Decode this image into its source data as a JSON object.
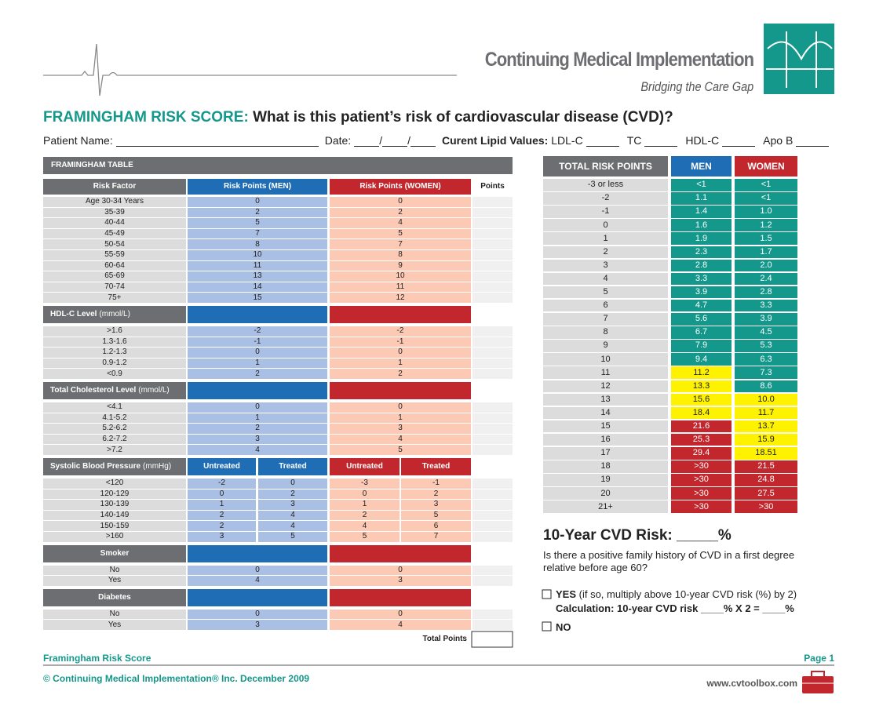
{
  "header": {
    "organization": "Continuing Medical Implementation",
    "tagline": "Bridging the Care Gap"
  },
  "title": {
    "lead": "FRAMINGHAM RISK SCORE:",
    "question": "What is this patient’s risk of cardiovascular disease (CVD)?"
  },
  "patient_line": {
    "name": "Patient Name:",
    "date": "Date:",
    "lipids": "Curent Lipid Values:",
    "fields": [
      "LDL-C",
      "TC",
      "HDL-C",
      "Apo B"
    ]
  },
  "framingham_table": {
    "title": "FRAMINGHAM TABLE",
    "columns": [
      "Risk Factor",
      "Risk Points (MEN)",
      "Risk Points (WOMEN)",
      "Points"
    ],
    "sections": [
      {
        "rows": [
          [
            "Age 30-34 Years",
            0,
            0
          ],
          [
            "35-39",
            2,
            2
          ],
          [
            "40-44",
            5,
            4
          ],
          [
            "45-49",
            7,
            5
          ],
          [
            "50-54",
            8,
            7
          ],
          [
            "55-59",
            10,
            8
          ],
          [
            "60-64",
            11,
            9
          ],
          [
            "65-69",
            13,
            10
          ],
          [
            "70-74",
            14,
            11
          ],
          [
            "75+",
            15,
            12
          ]
        ]
      },
      {
        "name": "HDL-C Level",
        "unit": "(mmol/L)",
        "rows": [
          [
            ">1.6",
            -2,
            -2
          ],
          [
            "1.3-1.6",
            -1,
            -1
          ],
          [
            "1.2-1.3",
            0,
            0
          ],
          [
            "0.9-1.2",
            1,
            1
          ],
          [
            "<0.9",
            2,
            2
          ]
        ]
      },
      {
        "name": "Total Cholesterol Level",
        "unit": "(mmol/L)",
        "rows": [
          [
            "<4.1",
            0,
            0
          ],
          [
            "4.1-5.2",
            1,
            1
          ],
          [
            "5.2-6.2",
            2,
            3
          ],
          [
            "6.2-7.2",
            3,
            4
          ],
          [
            ">7.2",
            4,
            5
          ]
        ]
      },
      {
        "name": "Systolic Blood Pressure",
        "unit": "(mmHg)",
        "subheaders": [
          "Untreated",
          "Treated"
        ],
        "rows": [
          [
            "<120",
            -2,
            0,
            -3,
            -1
          ],
          [
            "120-129",
            0,
            2,
            0,
            2
          ],
          [
            "130-139",
            1,
            3,
            1,
            3
          ],
          [
            "140-149",
            2,
            4,
            2,
            5
          ],
          [
            "150-159",
            2,
            4,
            4,
            6
          ],
          [
            ">160",
            3,
            5,
            5,
            7
          ]
        ]
      },
      {
        "name": "Smoker",
        "rows": [
          [
            "No",
            0,
            0
          ],
          [
            "Yes",
            4,
            3
          ]
        ]
      },
      {
        "name": "Diabetes",
        "rows": [
          [
            "No",
            0,
            0
          ],
          [
            "Yes",
            3,
            4
          ]
        ]
      }
    ],
    "total_label": "Total Points"
  },
  "risk_table": {
    "columns": [
      "TOTAL RISK POINTS",
      "MEN",
      "WOMEN"
    ],
    "colors": {
      "green": "#14988b",
      "yellow": "#fff200",
      "red": "#c1272d"
    },
    "rows": [
      {
        "points": "-3 or less",
        "men": "<1",
        "women": "<1",
        "men_color": "green",
        "women_color": "green"
      },
      {
        "points": "-2",
        "men": "1.1",
        "women": "<1",
        "men_color": "green",
        "women_color": "green"
      },
      {
        "points": "-1",
        "men": "1.4",
        "women": "1.0",
        "men_color": "green",
        "women_color": "green"
      },
      {
        "points": "0",
        "men": "1.6",
        "women": "1.2",
        "men_color": "green",
        "women_color": "green"
      },
      {
        "points": "1",
        "men": "1.9",
        "women": "1.5",
        "men_color": "green",
        "women_color": "green"
      },
      {
        "points": "2",
        "men": "2.3",
        "women": "1.7",
        "men_color": "green",
        "women_color": "green"
      },
      {
        "points": "3",
        "men": "2.8",
        "women": "2.0",
        "men_color": "green",
        "women_color": "green"
      },
      {
        "points": "4",
        "men": "3.3",
        "women": "2.4",
        "men_color": "green",
        "women_color": "green"
      },
      {
        "points": "5",
        "men": "3.9",
        "women": "2.8",
        "men_color": "green",
        "women_color": "green"
      },
      {
        "points": "6",
        "men": "4.7",
        "women": "3.3",
        "men_color": "green",
        "women_color": "green"
      },
      {
        "points": "7",
        "men": "5.6",
        "women": "3.9",
        "men_color": "green",
        "women_color": "green"
      },
      {
        "points": "8",
        "men": "6.7",
        "women": "4.5",
        "men_color": "green",
        "women_color": "green"
      },
      {
        "points": "9",
        "men": "7.9",
        "women": "5.3",
        "men_color": "green",
        "women_color": "green"
      },
      {
        "points": "10",
        "men": "9.4",
        "women": "6.3",
        "men_color": "green",
        "women_color": "green"
      },
      {
        "points": "11",
        "men": "11.2",
        "women": "7.3",
        "men_color": "yellow",
        "women_color": "green"
      },
      {
        "points": "12",
        "men": "13.3",
        "women": "8.6",
        "men_color": "yellow",
        "women_color": "green"
      },
      {
        "points": "13",
        "men": "15.6",
        "women": "10.0",
        "men_color": "yellow",
        "women_color": "yellow"
      },
      {
        "points": "14",
        "men": "18.4",
        "women": "11.7",
        "men_color": "yellow",
        "women_color": "yellow"
      },
      {
        "points": "15",
        "men": "21.6",
        "women": "13.7",
        "men_color": "red",
        "women_color": "yellow"
      },
      {
        "points": "16",
        "men": "25.3",
        "women": "15.9",
        "men_color": "red",
        "women_color": "yellow"
      },
      {
        "points": "17",
        "men": "29.4",
        "women": "18.51",
        "men_color": "red",
        "women_color": "yellow"
      },
      {
        "points": "18",
        "men": ">30",
        "women": "21.5",
        "men_color": "red",
        "women_color": "red"
      },
      {
        "points": "19",
        "men": ">30",
        "women": "24.8",
        "men_color": "red",
        "women_color": "red"
      },
      {
        "points": "20",
        "men": ">30",
        "women": "27.5",
        "men_color": "red",
        "women_color": "red"
      },
      {
        "points": "21+",
        "men": ">30",
        "women": ">30",
        "men_color": "red",
        "women_color": "red"
      }
    ]
  },
  "cvd_risk": {
    "label": "10-Year CVD Risk: _____%",
    "question": "Is there a positive family history of CVD in a first degree relative before age 60?",
    "yes": "YES",
    "yes_note": "(if so, multiply above 10-year CVD risk (%) by 2)",
    "calculation": "Calculation: 10-year CVD risk ____% X 2 = ____%",
    "no": "NO"
  },
  "footer": {
    "left": "Framingham Risk Score",
    "page": "Page 1",
    "copyright": "© Continuing Medical Implementation® Inc. December 2009",
    "website": "www.cvtoolbox.com"
  }
}
